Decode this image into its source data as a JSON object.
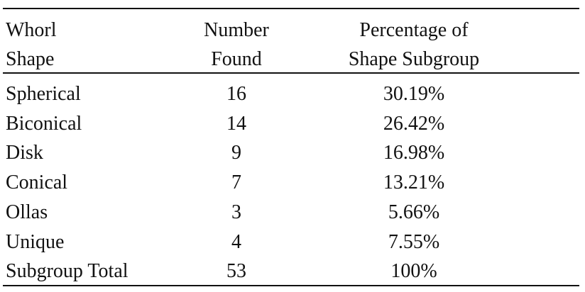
{
  "headers": [
    [
      "Whorl",
      "Shape"
    ],
    [
      "Number",
      "Found"
    ],
    [
      "Percentage of",
      "Shape Subgroup"
    ]
  ],
  "rows": [
    [
      "Spherical",
      "16",
      "30.19%"
    ],
    [
      "Biconical",
      "14",
      "26.42%"
    ],
    [
      "Disk",
      "9",
      "16.98%"
    ],
    [
      "Conical",
      "7",
      "13.21%"
    ],
    [
      "Ollas",
      "3",
      "5.66%"
    ],
    [
      "Unique",
      "4",
      "7.55%"
    ],
    [
      "Subgroup Total",
      "53",
      "100%"
    ]
  ]
}
